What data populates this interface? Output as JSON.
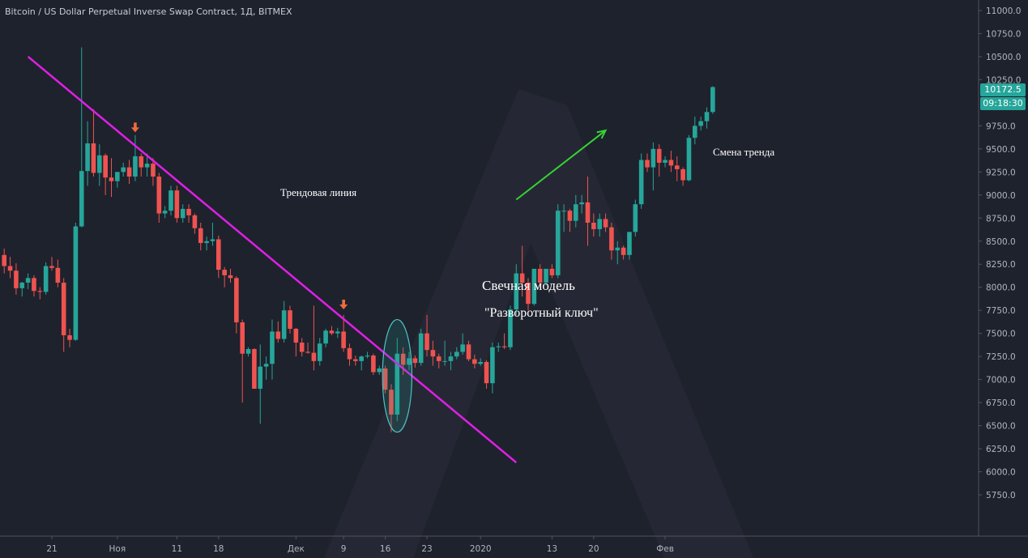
{
  "header": {
    "title": "Bitcoin / US Dollar Perpetual Inverse Swap Contract, 1Д, BITMEX"
  },
  "price_badge": {
    "last_price": "10172.5",
    "countdown": "09:18:30",
    "color": "#26a69a"
  },
  "annotations": {
    "trendline_label": "Трендовая линия",
    "pattern_title": "Свечная модель",
    "pattern_name": "\"Разворотный ключ\"",
    "trend_change": "Смена тренда"
  },
  "colors": {
    "background": "#1e222d",
    "up_candle": "#26a69a",
    "down_candle": "#ef5350",
    "trendline": "#e01fe6",
    "arrow_up": "#35d335",
    "marker": "#ef6c3b"
  },
  "chart_data": {
    "type": "candlestick",
    "y_axis": {
      "range": [
        5500,
        11100
      ],
      "tick_labels": [
        "11000.0",
        "10750.0",
        "10500.0",
        "10250.0",
        "9750.0",
        "9500.0",
        "9250.0",
        "9000.0",
        "8750.0",
        "8500.0",
        "8250.0",
        "8000.0",
        "7750.0",
        "7500.0",
        "7250.0",
        "7000.0",
        "6750.0",
        "6500.0",
        "6250.0",
        "6000.0",
        "5750.0"
      ],
      "position": "right"
    },
    "x_axis": {
      "tick_labels": [
        {
          "label": "21",
          "date": "2019-10-21"
        },
        {
          "label": "Ноя",
          "date": "2019-11-01"
        },
        {
          "label": "11",
          "date": "2019-11-11"
        },
        {
          "label": "18",
          "date": "2019-11-18"
        },
        {
          "label": "Дек",
          "date": "2019-12-01"
        },
        {
          "label": "9",
          "date": "2019-12-09"
        },
        {
          "label": "16",
          "date": "2019-12-16"
        },
        {
          "label": "23",
          "date": "2019-12-23"
        },
        {
          "label": "2020",
          "date": "2020-01-01"
        },
        {
          "label": "13",
          "date": "2020-01-13"
        },
        {
          "label": "20",
          "date": "2020-01-20"
        },
        {
          "label": "Фев",
          "date": "2020-02-01"
        }
      ]
    },
    "grid": false,
    "candles": [
      {
        "date": "2019-10-13",
        "open": 8350,
        "high": 8420,
        "low": 8150,
        "close": 8230
      },
      {
        "date": "2019-10-14",
        "open": 8230,
        "high": 8330,
        "low": 8100,
        "close": 8180
      },
      {
        "date": "2019-10-15",
        "open": 8180,
        "high": 8260,
        "low": 7920,
        "close": 7990
      },
      {
        "date": "2019-10-16",
        "open": 7990,
        "high": 8060,
        "low": 7900,
        "close": 8050
      },
      {
        "date": "2019-10-17",
        "open": 8050,
        "high": 8150,
        "low": 7980,
        "close": 8100
      },
      {
        "date": "2019-10-18",
        "open": 8100,
        "high": 8130,
        "low": 7900,
        "close": 7960
      },
      {
        "date": "2019-10-19",
        "open": 7960,
        "high": 8000,
        "low": 7870,
        "close": 7950
      },
      {
        "date": "2019-10-20",
        "open": 7950,
        "high": 8270,
        "low": 7920,
        "close": 8230
      },
      {
        "date": "2019-10-21",
        "open": 8230,
        "high": 8330,
        "low": 8180,
        "close": 8210
      },
      {
        "date": "2019-10-22",
        "open": 8210,
        "high": 8300,
        "low": 8000,
        "close": 8050
      },
      {
        "date": "2019-10-23",
        "open": 8050,
        "high": 8100,
        "low": 7300,
        "close": 7480
      },
      {
        "date": "2019-10-24",
        "open": 7480,
        "high": 7550,
        "low": 7350,
        "close": 7430
      },
      {
        "date": "2019-10-25",
        "open": 7430,
        "high": 8700,
        "low": 7420,
        "close": 8660
      },
      {
        "date": "2019-10-26",
        "open": 8660,
        "high": 10600,
        "low": 8650,
        "close": 9260
      },
      {
        "date": "2019-10-27",
        "open": 9260,
        "high": 9800,
        "low": 9100,
        "close": 9560
      },
      {
        "date": "2019-10-28",
        "open": 9560,
        "high": 9930,
        "low": 9200,
        "close": 9240
      },
      {
        "date": "2019-10-29",
        "open": 9240,
        "high": 9550,
        "low": 9100,
        "close": 9430
      },
      {
        "date": "2019-10-30",
        "open": 9430,
        "high": 9450,
        "low": 9000,
        "close": 9190
      },
      {
        "date": "2019-10-31",
        "open": 9190,
        "high": 9400,
        "low": 8980,
        "close": 9150
      },
      {
        "date": "2019-11-01",
        "open": 9150,
        "high": 9250,
        "low": 9080,
        "close": 9250
      },
      {
        "date": "2019-11-02",
        "open": 9250,
        "high": 9350,
        "low": 9200,
        "close": 9300
      },
      {
        "date": "2019-11-03",
        "open": 9300,
        "high": 9380,
        "low": 9120,
        "close": 9200
      },
      {
        "date": "2019-11-04",
        "open": 9200,
        "high": 9650,
        "low": 9150,
        "close": 9420
      },
      {
        "date": "2019-11-05",
        "open": 9420,
        "high": 9450,
        "low": 9200,
        "close": 9300
      },
      {
        "date": "2019-11-06",
        "open": 9300,
        "high": 9450,
        "low": 9200,
        "close": 9340
      },
      {
        "date": "2019-11-07",
        "open": 9340,
        "high": 9400,
        "low": 9100,
        "close": 9200
      },
      {
        "date": "2019-11-08",
        "open": 9200,
        "high": 9240,
        "low": 8700,
        "close": 8800
      },
      {
        "date": "2019-11-09",
        "open": 8800,
        "high": 8880,
        "low": 8750,
        "close": 8830
      },
      {
        "date": "2019-11-10",
        "open": 8830,
        "high": 9100,
        "low": 8780,
        "close": 9050
      },
      {
        "date": "2019-11-11",
        "open": 9050,
        "high": 9100,
        "low": 8700,
        "close": 8750
      },
      {
        "date": "2019-11-12",
        "open": 8750,
        "high": 8900,
        "low": 8700,
        "close": 8850
      },
      {
        "date": "2019-11-13",
        "open": 8850,
        "high": 8900,
        "low": 8700,
        "close": 8780
      },
      {
        "date": "2019-11-14",
        "open": 8780,
        "high": 8800,
        "low": 8580,
        "close": 8640
      },
      {
        "date": "2019-11-15",
        "open": 8640,
        "high": 8700,
        "low": 8400,
        "close": 8480
      },
      {
        "date": "2019-11-16",
        "open": 8480,
        "high": 8550,
        "low": 8400,
        "close": 8500
      },
      {
        "date": "2019-11-17",
        "open": 8500,
        "high": 8700,
        "low": 8450,
        "close": 8520
      },
      {
        "date": "2019-11-18",
        "open": 8520,
        "high": 8560,
        "low": 8100,
        "close": 8190
      },
      {
        "date": "2019-11-19",
        "open": 8190,
        "high": 8220,
        "low": 8000,
        "close": 8130
      },
      {
        "date": "2019-11-20",
        "open": 8130,
        "high": 8200,
        "low": 8050,
        "close": 8100
      },
      {
        "date": "2019-11-21",
        "open": 8100,
        "high": 8120,
        "low": 7500,
        "close": 7620
      },
      {
        "date": "2019-11-22",
        "open": 7620,
        "high": 7650,
        "low": 6750,
        "close": 7280
      },
      {
        "date": "2019-11-23",
        "open": 7280,
        "high": 7350,
        "low": 7250,
        "close": 7330
      },
      {
        "date": "2019-11-24",
        "open": 7330,
        "high": 7340,
        "low": 6900,
        "close": 6900
      },
      {
        "date": "2019-11-25",
        "open": 6900,
        "high": 7380,
        "low": 6520,
        "close": 7140
      },
      {
        "date": "2019-11-26",
        "open": 7140,
        "high": 7250,
        "low": 7000,
        "close": 7170
      },
      {
        "date": "2019-11-27",
        "open": 7170,
        "high": 7650,
        "low": 7000,
        "close": 7520
      },
      {
        "date": "2019-11-28",
        "open": 7520,
        "high": 7630,
        "low": 7400,
        "close": 7440
      },
      {
        "date": "2019-11-29",
        "open": 7440,
        "high": 7850,
        "low": 7400,
        "close": 7750
      },
      {
        "date": "2019-11-30",
        "open": 7750,
        "high": 7800,
        "low": 7500,
        "close": 7550
      },
      {
        "date": "2019-12-01",
        "open": 7550,
        "high": 7560,
        "low": 7250,
        "close": 7400
      },
      {
        "date": "2019-12-02",
        "open": 7400,
        "high": 7450,
        "low": 7250,
        "close": 7300
      },
      {
        "date": "2019-12-03",
        "open": 7300,
        "high": 7400,
        "low": 7280,
        "close": 7290
      },
      {
        "date": "2019-12-04",
        "open": 7290,
        "high": 7800,
        "low": 7100,
        "close": 7200
      },
      {
        "date": "2019-12-05",
        "open": 7200,
        "high": 7450,
        "low": 7150,
        "close": 7390
      },
      {
        "date": "2019-12-06",
        "open": 7390,
        "high": 7550,
        "low": 7350,
        "close": 7530
      },
      {
        "date": "2019-12-07",
        "open": 7530,
        "high": 7580,
        "low": 7480,
        "close": 7500
      },
      {
        "date": "2019-12-08",
        "open": 7500,
        "high": 7560,
        "low": 7450,
        "close": 7520
      },
      {
        "date": "2019-12-09",
        "open": 7520,
        "high": 7700,
        "low": 7300,
        "close": 7340
      },
      {
        "date": "2019-12-10",
        "open": 7340,
        "high": 7390,
        "low": 7150,
        "close": 7220
      },
      {
        "date": "2019-12-11",
        "open": 7220,
        "high": 7260,
        "low": 7150,
        "close": 7200
      },
      {
        "date": "2019-12-12",
        "open": 7200,
        "high": 7260,
        "low": 7100,
        "close": 7250
      },
      {
        "date": "2019-12-13",
        "open": 7250,
        "high": 7300,
        "low": 7230,
        "close": 7260
      },
      {
        "date": "2019-12-14",
        "open": 7260,
        "high": 7280,
        "low": 7050,
        "close": 7080
      },
      {
        "date": "2019-12-15",
        "open": 7080,
        "high": 7150,
        "low": 7050,
        "close": 7120
      },
      {
        "date": "2019-12-16",
        "open": 7120,
        "high": 7150,
        "low": 6850,
        "close": 6890
      },
      {
        "date": "2019-12-17",
        "open": 6890,
        "high": 6950,
        "low": 6430,
        "close": 6620
      },
      {
        "date": "2019-12-18",
        "open": 6620,
        "high": 7450,
        "low": 6550,
        "close": 7280
      },
      {
        "date": "2019-12-19",
        "open": 7280,
        "high": 7350,
        "low": 7050,
        "close": 7160
      },
      {
        "date": "2019-12-20",
        "open": 7160,
        "high": 7300,
        "low": 7100,
        "close": 7230
      },
      {
        "date": "2019-12-21",
        "open": 7230,
        "high": 7260,
        "low": 7130,
        "close": 7180
      },
      {
        "date": "2019-12-22",
        "open": 7180,
        "high": 7550,
        "low": 7150,
        "close": 7500
      },
      {
        "date": "2019-12-23",
        "open": 7500,
        "high": 7700,
        "low": 7250,
        "close": 7320
      },
      {
        "date": "2019-12-24",
        "open": 7320,
        "high": 7420,
        "low": 7150,
        "close": 7250
      },
      {
        "date": "2019-12-25",
        "open": 7250,
        "high": 7280,
        "low": 7120,
        "close": 7200
      },
      {
        "date": "2019-12-26",
        "open": 7200,
        "high": 7420,
        "low": 7150,
        "close": 7200
      },
      {
        "date": "2019-12-27",
        "open": 7200,
        "high": 7300,
        "low": 7100,
        "close": 7250
      },
      {
        "date": "2019-12-28",
        "open": 7250,
        "high": 7350,
        "low": 7220,
        "close": 7300
      },
      {
        "date": "2019-12-29",
        "open": 7300,
        "high": 7500,
        "low": 7270,
        "close": 7380
      },
      {
        "date": "2019-12-30",
        "open": 7380,
        "high": 7420,
        "low": 7200,
        "close": 7220
      },
      {
        "date": "2019-12-31",
        "open": 7220,
        "high": 7270,
        "low": 7120,
        "close": 7170
      },
      {
        "date": "2020-01-01",
        "open": 7170,
        "high": 7230,
        "low": 7150,
        "close": 7190
      },
      {
        "date": "2020-01-02",
        "open": 7190,
        "high": 7210,
        "low": 6900,
        "close": 6960
      },
      {
        "date": "2020-01-03",
        "open": 6960,
        "high": 7400,
        "low": 6850,
        "close": 7350
      },
      {
        "date": "2020-01-04",
        "open": 7350,
        "high": 7400,
        "low": 7300,
        "close": 7360
      },
      {
        "date": "2020-01-05",
        "open": 7360,
        "high": 7500,
        "low": 7330,
        "close": 7350
      },
      {
        "date": "2020-01-06",
        "open": 7350,
        "high": 7800,
        "low": 7320,
        "close": 7760
      },
      {
        "date": "2020-01-07",
        "open": 7760,
        "high": 8250,
        "low": 7700,
        "close": 8150
      },
      {
        "date": "2020-01-08",
        "open": 8150,
        "high": 8450,
        "low": 7900,
        "close": 8050
      },
      {
        "date": "2020-01-09",
        "open": 8050,
        "high": 8100,
        "low": 7750,
        "close": 7820
      },
      {
        "date": "2020-01-10",
        "open": 7820,
        "high": 8200,
        "low": 7800,
        "close": 8200
      },
      {
        "date": "2020-01-11",
        "open": 8200,
        "high": 8250,
        "low": 8000,
        "close": 8050
      },
      {
        "date": "2020-01-12",
        "open": 8050,
        "high": 8200,
        "low": 8020,
        "close": 8200
      },
      {
        "date": "2020-01-13",
        "open": 8200,
        "high": 8250,
        "low": 8100,
        "close": 8130
      },
      {
        "date": "2020-01-14",
        "open": 8130,
        "high": 8900,
        "low": 8100,
        "close": 8830
      },
      {
        "date": "2020-01-15",
        "open": 8830,
        "high": 8900,
        "low": 8600,
        "close": 8830
      },
      {
        "date": "2020-01-16",
        "open": 8830,
        "high": 8850,
        "low": 8600,
        "close": 8720
      },
      {
        "date": "2020-01-17",
        "open": 8720,
        "high": 9000,
        "low": 8650,
        "close": 8900
      },
      {
        "date": "2020-01-18",
        "open": 8900,
        "high": 9000,
        "low": 8800,
        "close": 8920
      },
      {
        "date": "2020-01-19",
        "open": 8920,
        "high": 9200,
        "low": 8450,
        "close": 8700
      },
      {
        "date": "2020-01-20",
        "open": 8700,
        "high": 8800,
        "low": 8550,
        "close": 8630
      },
      {
        "date": "2020-01-21",
        "open": 8630,
        "high": 8800,
        "low": 8550,
        "close": 8740
      },
      {
        "date": "2020-01-22",
        "open": 8740,
        "high": 8800,
        "low": 8600,
        "close": 8650
      },
      {
        "date": "2020-01-23",
        "open": 8650,
        "high": 8700,
        "low": 8300,
        "close": 8400
      },
      {
        "date": "2020-01-24",
        "open": 8400,
        "high": 8500,
        "low": 8250,
        "close": 8430
      },
      {
        "date": "2020-01-25",
        "open": 8430,
        "high": 8450,
        "low": 8300,
        "close": 8350
      },
      {
        "date": "2020-01-26",
        "open": 8350,
        "high": 8600,
        "low": 8300,
        "close": 8600
      },
      {
        "date": "2020-01-27",
        "open": 8600,
        "high": 8950,
        "low": 8550,
        "close": 8900
      },
      {
        "date": "2020-01-28",
        "open": 8900,
        "high": 9450,
        "low": 8850,
        "close": 9380
      },
      {
        "date": "2020-01-29",
        "open": 9380,
        "high": 9450,
        "low": 9250,
        "close": 9300
      },
      {
        "date": "2020-01-30",
        "open": 9300,
        "high": 9570,
        "low": 9050,
        "close": 9500
      },
      {
        "date": "2020-01-31",
        "open": 9500,
        "high": 9550,
        "low": 9200,
        "close": 9350
      },
      {
        "date": "2020-02-01",
        "open": 9350,
        "high": 9420,
        "low": 9300,
        "close": 9380
      },
      {
        "date": "2020-02-02",
        "open": 9380,
        "high": 9480,
        "low": 9250,
        "close": 9320
      },
      {
        "date": "2020-02-03",
        "open": 9320,
        "high": 9420,
        "low": 9150,
        "close": 9280
      },
      {
        "date": "2020-02-04",
        "open": 9280,
        "high": 9300,
        "low": 9100,
        "close": 9160
      },
      {
        "date": "2020-02-05",
        "open": 9160,
        "high": 9650,
        "low": 9150,
        "close": 9620
      },
      {
        "date": "2020-02-06",
        "open": 9620,
        "high": 9850,
        "low": 9550,
        "close": 9750
      },
      {
        "date": "2020-02-07",
        "open": 9750,
        "high": 9850,
        "low": 9700,
        "close": 9800
      },
      {
        "date": "2020-02-08",
        "open": 9800,
        "high": 9950,
        "low": 9720,
        "close": 9900
      },
      {
        "date": "2020-02-09",
        "open": 9900,
        "high": 10180,
        "low": 9880,
        "close": 10170
      }
    ],
    "trendline": {
      "from": {
        "date": "2019-10-17",
        "price": 10500
      },
      "to": {
        "date": "2020-01-07",
        "price": 6100
      }
    },
    "pattern_ellipse": {
      "center": {
        "date": "2019-12-18",
        "price": 7040
      },
      "semi_days": 1.7,
      "semi_price": 610
    },
    "markers": [
      {
        "date": "2019-11-04",
        "price": 9680,
        "type": "arrow-down"
      },
      {
        "date": "2019-12-09",
        "price": 7760,
        "type": "arrow-down"
      }
    ],
    "trend_arrow": {
      "from": {
        "date": "2020-01-07",
        "price": 8950
      },
      "to": {
        "date": "2020-01-22",
        "price": 9700
      }
    }
  }
}
